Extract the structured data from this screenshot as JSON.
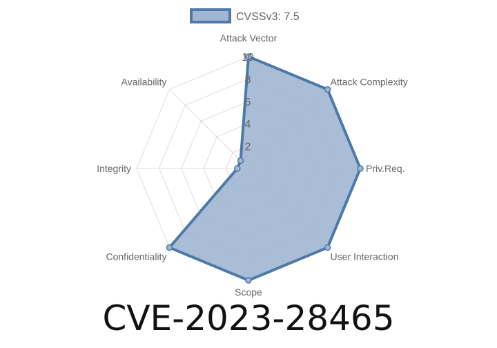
{
  "chart_data": {
    "type": "radar",
    "axes": [
      "Attack Vector",
      "Attack Complexity",
      "Priv.Req.",
      "User Interaction",
      "Scope",
      "Confidentiality",
      "Integrity",
      "Availability"
    ],
    "series": [
      {
        "name": "CVSSv3: 7.5",
        "values": [
          10,
          10,
          10,
          10,
          10,
          10,
          1,
          1
        ]
      }
    ],
    "r_ticks": [
      "2",
      "4",
      "6",
      "8",
      "10"
    ],
    "r_range": [
      0,
      10
    ],
    "grid": true,
    "legend": "top",
    "colors": {
      "line": "#4e79a7",
      "fill": "#a0b6d3",
      "grid": "#dddddd"
    }
  },
  "footer": {
    "title": "CVE-2023-28465"
  }
}
